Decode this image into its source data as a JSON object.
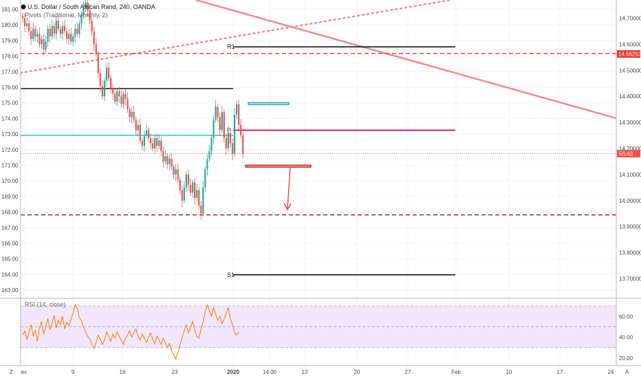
{
  "header": {
    "title": "U.S. Dollar / South African Rand, 240, OANDA",
    "indicator": "Pivots (Traditional, Monthly, 2)"
  },
  "rsi_header": {
    "label": "RSI (14, close)"
  },
  "price_labels": {
    "current_price": "14.56253",
    "countdown": "56:43"
  },
  "pivot_labels": {
    "r1": "R1",
    "p": "P",
    "s1": "S1"
  },
  "bottom_left": {
    "zoom_label": "Z",
    "auto_label": "A"
  },
  "colors": {
    "up": "#26a69a",
    "down": "#ef5350",
    "pivot_black": "#131722",
    "pivot_p": "#d81b60",
    "cyan": "#26c6da",
    "red_dash": "#e53935",
    "trend": "#f28b8b",
    "rsi_line": "#f57c00",
    "rsi_band": "#f1e6fb"
  },
  "chart_data": [
    {
      "type": "candlestick",
      "title": "U.S. Dollar / South African Rand, 240, OANDA",
      "x_tick_labels": [
        "ec",
        "9",
        "16",
        "23",
        "2020",
        "14:00",
        "13",
        "20",
        "27",
        "Feb",
        "10",
        "17",
        "24"
      ],
      "left_axis_ticks": [
        "181.00",
        "180.00",
        "179.00",
        "178.00",
        "177.00",
        "176.00",
        "175.00",
        "174.00",
        "173.00",
        "172.00",
        "171.00",
        "170.00",
        "169.00",
        "168.00",
        "167.00",
        "166.00",
        "165.00",
        "164.00",
        "163.00"
      ],
      "right_axis_ticks": [
        "14.70000",
        "14.60000",
        "14.50000",
        "14.40000",
        "14.30000",
        "14.20000",
        "14.10000",
        "14.00000",
        "13.90000",
        "13.80000",
        "13.70000"
      ],
      "ylim": [
        13.63,
        14.77
      ],
      "current_price_marker": 14.56253,
      "closes": [
        14.7,
        14.67,
        14.68,
        14.65,
        14.62,
        14.66,
        14.63,
        14.64,
        14.6,
        14.62,
        14.58,
        14.61,
        14.66,
        14.63,
        14.67,
        14.64,
        14.69,
        14.66,
        14.64,
        14.67,
        14.65,
        14.62,
        14.64,
        14.61,
        14.63,
        14.66,
        14.64,
        14.68,
        14.71,
        14.74,
        14.76,
        14.73,
        14.69,
        14.65,
        14.6,
        14.56,
        14.49,
        14.44,
        14.4,
        14.46,
        14.51,
        14.47,
        14.43,
        14.41,
        14.38,
        14.42,
        14.4,
        14.37,
        14.41,
        14.39,
        14.35,
        14.32,
        14.34,
        14.31,
        14.27,
        14.29,
        14.23,
        14.21,
        14.25,
        14.27,
        14.24,
        14.22,
        14.2,
        14.24,
        14.21,
        14.23,
        14.19,
        14.15,
        14.17,
        14.14,
        14.16,
        14.13,
        14.1,
        14.12,
        14.08,
        14.04,
        14.0,
        14.05,
        14.1,
        14.06,
        14.03,
        14.07,
        14.01,
        14.04,
        13.98,
        13.95,
        14.05,
        14.12,
        14.16,
        14.19,
        14.24,
        14.31,
        14.36,
        14.32,
        14.27,
        14.34,
        14.24,
        14.2,
        14.26,
        14.22,
        14.18,
        14.33,
        14.37,
        14.29,
        14.25,
        14.18
      ],
      "pivots": [
        {
          "name": "R1",
          "value": 14.59
        },
        {
          "name": "P",
          "value": 14.27
        },
        {
          "name": "S1",
          "value": 13.715
        }
      ],
      "horizontal_levels": [
        14.565,
        14.43,
        14.25,
        13.945
      ],
      "rectangles": [
        {
          "color": "cyan",
          "low": 14.368,
          "high": 14.376
        },
        {
          "color": "red",
          "low": 14.128,
          "high": 14.136
        }
      ]
    },
    {
      "type": "line",
      "title": "RSI (14, close)",
      "y_tick_labels": [
        "60.00",
        "40.00",
        "20.00"
      ],
      "ylim": [
        14,
        76
      ],
      "band": [
        30,
        70
      ],
      "values": [
        42,
        46,
        38,
        44,
        52,
        41,
        47,
        36,
        49,
        55,
        43,
        50,
        58,
        47,
        53,
        61,
        49,
        56,
        52,
        60,
        48,
        54,
        51,
        57,
        63,
        71,
        68,
        59,
        56,
        50,
        45,
        41,
        38,
        33,
        29,
        35,
        42,
        38,
        33,
        37,
        45,
        41,
        36,
        43,
        39,
        45,
        41,
        37,
        33,
        39,
        42,
        46,
        40,
        44,
        48,
        41,
        37,
        43,
        39,
        35,
        40,
        44,
        38,
        34,
        41,
        37,
        33,
        39,
        35,
        30,
        34,
        27,
        23,
        19,
        25,
        33,
        40,
        46,
        52,
        44,
        49,
        55,
        47,
        41,
        39,
        48,
        55,
        64,
        71,
        66,
        60,
        68,
        62,
        56,
        60,
        53,
        57,
        63,
        68,
        58,
        52,
        44,
        42,
        45
      ]
    }
  ]
}
